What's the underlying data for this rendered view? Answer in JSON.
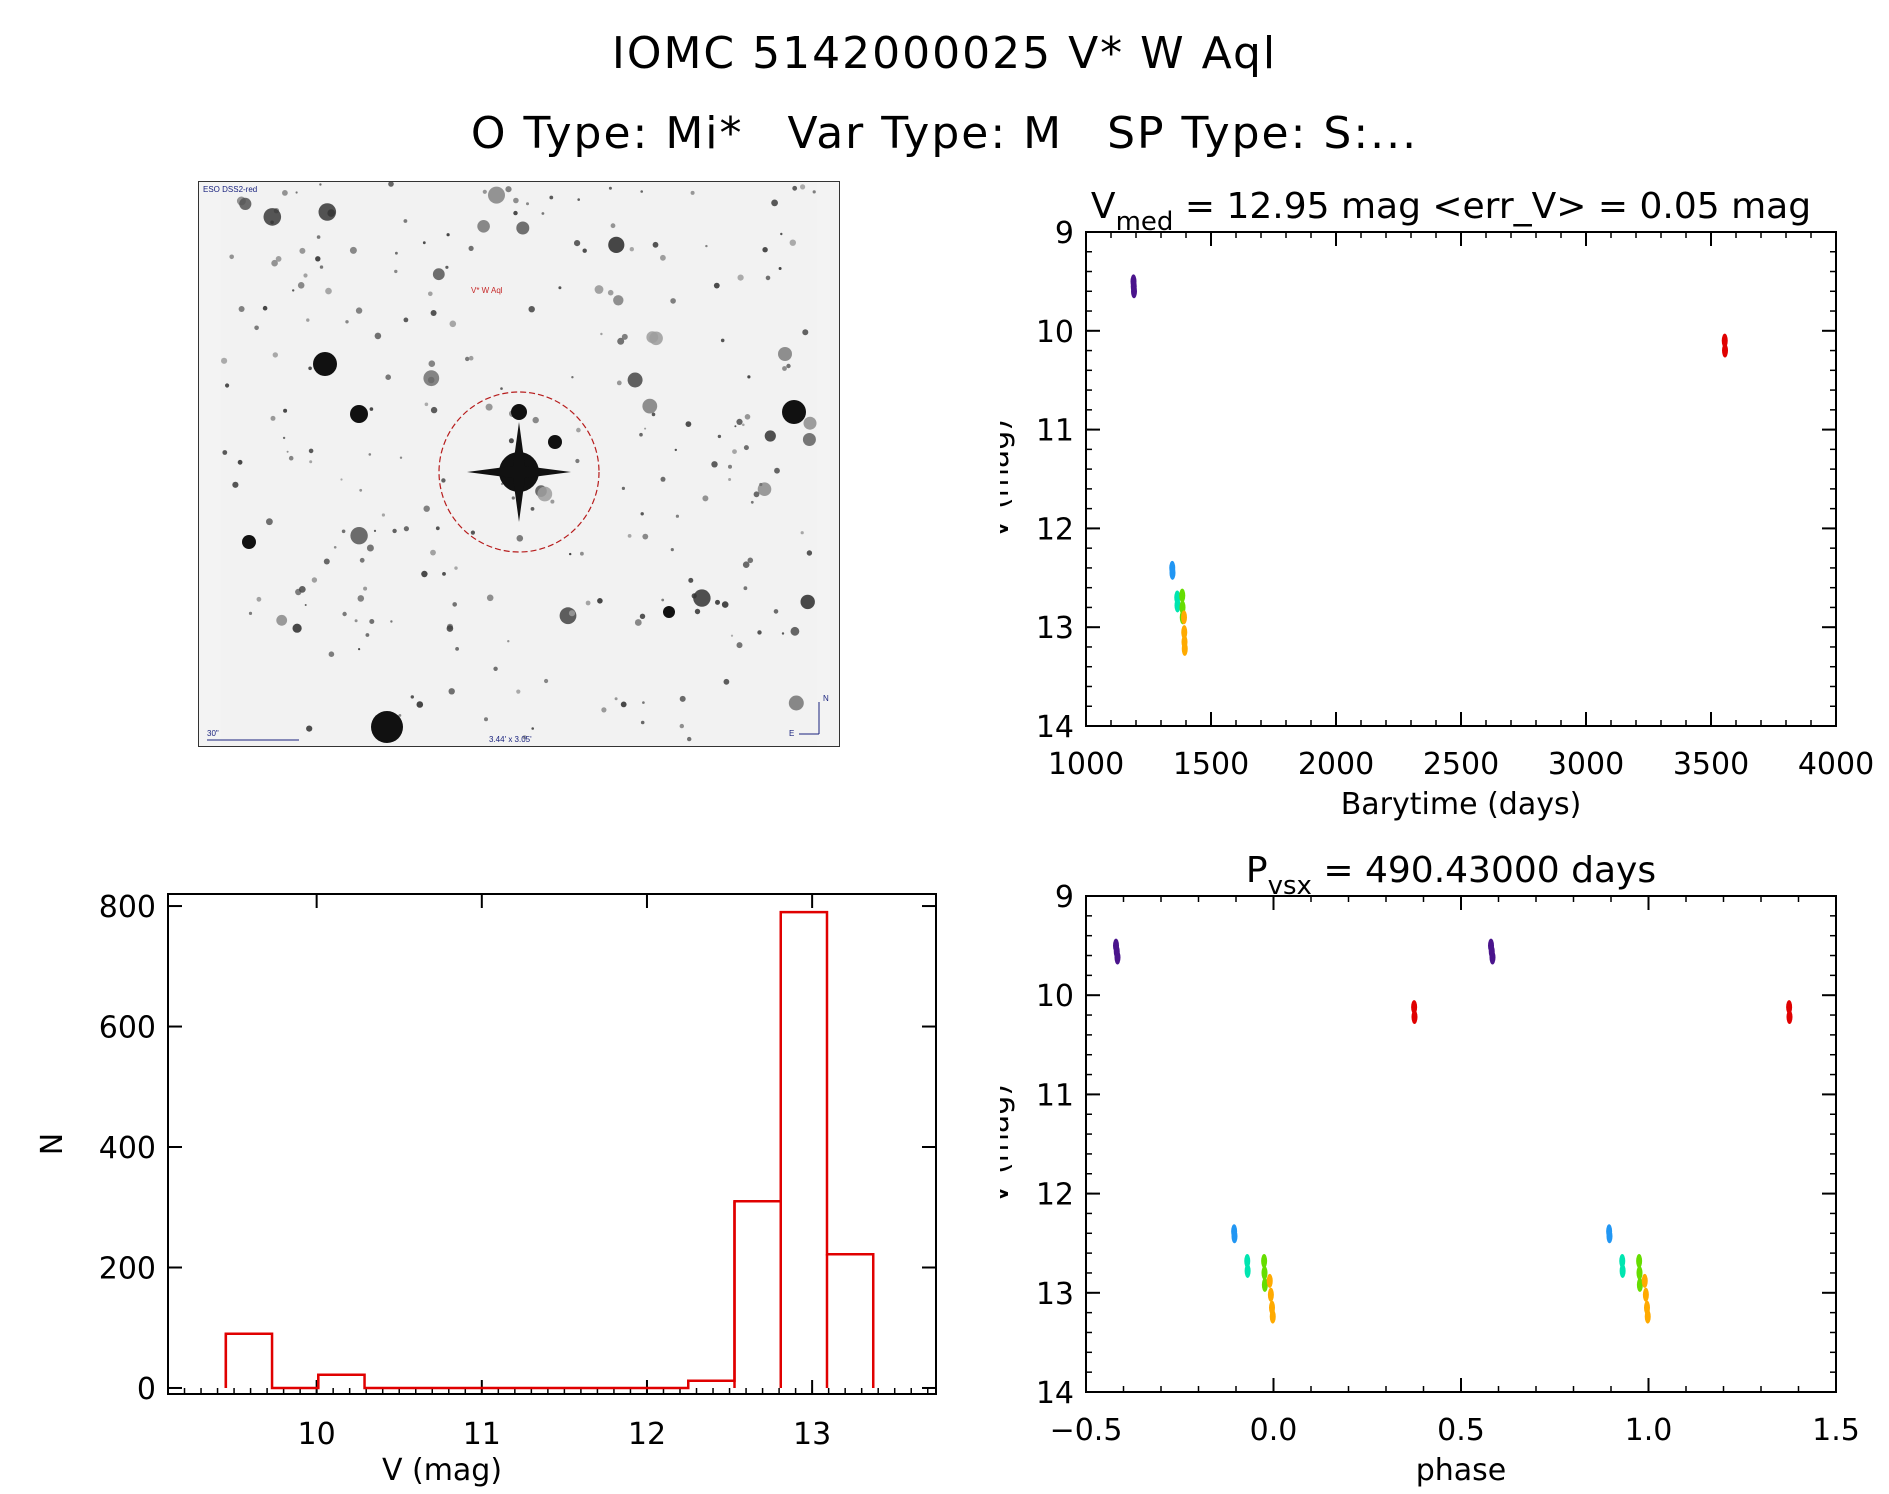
{
  "header": {
    "id_line": "IOMC 5142000025     V* W Aql",
    "otype": "O Type: Mi*",
    "vartype": "Var Type: M",
    "sptype": "SP Type: S:..."
  },
  "finder": {
    "survey_label": "ESO DSS2-red",
    "target_label": "V* W Aql",
    "scale_label": "30\"",
    "fov_label": "3.44' x 3.05'",
    "north_label": "N",
    "east_label": "E"
  },
  "colors": {
    "hist": "#e00000",
    "points": [
      "#4a148c",
      "#2196f3",
      "#00e5b0",
      "#66dd00",
      "#ffaa00",
      "#e00000"
    ]
  },
  "chart_data": [
    {
      "id": "lightcurve",
      "type": "scatter",
      "title_main": "V",
      "title_sub": "med",
      "title_rest": " = 12.95 mag <err_V> = 0.05 mag",
      "xlabel": "Barytime (days)",
      "ylabel": "V (mag)",
      "xlim": [
        1000,
        4000
      ],
      "ylim": [
        14,
        9
      ],
      "xticks": [
        1000,
        1500,
        2000,
        2500,
        3000,
        3500,
        4000
      ],
      "yticks": [
        9,
        10,
        11,
        12,
        13,
        14
      ],
      "points": [
        {
          "x": 1190,
          "y": 9.5,
          "c": 0
        },
        {
          "x": 1191,
          "y": 9.55,
          "c": 0
        },
        {
          "x": 1192,
          "y": 9.6,
          "c": 0
        },
        {
          "x": 1345,
          "y": 12.4,
          "c": 1
        },
        {
          "x": 1346,
          "y": 12.45,
          "c": 1
        },
        {
          "x": 1365,
          "y": 12.7,
          "c": 2
        },
        {
          "x": 1366,
          "y": 12.78,
          "c": 2
        },
        {
          "x": 1385,
          "y": 12.68,
          "c": 3
        },
        {
          "x": 1386,
          "y": 12.8,
          "c": 3
        },
        {
          "x": 1387,
          "y": 12.9,
          "c": 3
        },
        {
          "x": 1392,
          "y": 12.9,
          "c": 4
        },
        {
          "x": 1393,
          "y": 13.05,
          "c": 4
        },
        {
          "x": 1394,
          "y": 13.15,
          "c": 4
        },
        {
          "x": 1395,
          "y": 13.22,
          "c": 4
        },
        {
          "x": 3555,
          "y": 10.1,
          "c": 5
        },
        {
          "x": 3556,
          "y": 10.2,
          "c": 5
        }
      ]
    },
    {
      "id": "histogram",
      "type": "bar",
      "xlabel": "V (mag)",
      "ylabel": "N",
      "xlim": [
        9.1,
        13.75
      ],
      "ylim": [
        -10,
        820
      ],
      "xticks": [
        10,
        11,
        12,
        13
      ],
      "yticks": [
        0,
        200,
        400,
        600,
        800
      ],
      "bin_edges": [
        9.45,
        9.73,
        10.01,
        10.29,
        10.57,
        10.85,
        11.13,
        11.41,
        11.69,
        11.97,
        12.25,
        12.53,
        12.81,
        13.09,
        13.37
      ],
      "counts": [
        90,
        0,
        22,
        0,
        0,
        0,
        0,
        0,
        0,
        0,
        12,
        310,
        790,
        222
      ]
    },
    {
      "id": "phased",
      "type": "scatter",
      "title_main": "P",
      "title_sub": "vsx",
      "title_rest": " = 490.43000 days",
      "xlabel": "phase",
      "ylabel": "V (mag)",
      "xlim": [
        -0.5,
        1.5
      ],
      "ylim": [
        14,
        9
      ],
      "xticks": [
        -0.5,
        0.0,
        0.5,
        1.0,
        1.5
      ],
      "xtick_labels": [
        "−0.5",
        "0.0",
        "0.5",
        "1.0",
        "1.5"
      ],
      "yticks": [
        9,
        10,
        11,
        12,
        13,
        14
      ],
      "points": [
        {
          "x": -0.42,
          "y": 9.5,
          "c": 0
        },
        {
          "x": -0.418,
          "y": 9.56,
          "c": 0
        },
        {
          "x": -0.416,
          "y": 9.62,
          "c": 0
        },
        {
          "x": -0.105,
          "y": 12.38,
          "c": 1
        },
        {
          "x": -0.104,
          "y": 12.43,
          "c": 1
        },
        {
          "x": -0.07,
          "y": 12.68,
          "c": 2
        },
        {
          "x": -0.069,
          "y": 12.78,
          "c": 2
        },
        {
          "x": -0.025,
          "y": 12.68,
          "c": 3
        },
        {
          "x": -0.024,
          "y": 12.8,
          "c": 3
        },
        {
          "x": -0.023,
          "y": 12.92,
          "c": 3
        },
        {
          "x": -0.01,
          "y": 12.88,
          "c": 4
        },
        {
          "x": -0.007,
          "y": 13.02,
          "c": 4
        },
        {
          "x": -0.004,
          "y": 13.15,
          "c": 4
        },
        {
          "x": -0.002,
          "y": 13.24,
          "c": 4
        },
        {
          "x": 0.375,
          "y": 10.12,
          "c": 5
        },
        {
          "x": 0.376,
          "y": 10.22,
          "c": 5
        },
        {
          "x": 0.58,
          "y": 9.5,
          "c": 0
        },
        {
          "x": 0.582,
          "y": 9.56,
          "c": 0
        },
        {
          "x": 0.584,
          "y": 9.62,
          "c": 0
        },
        {
          "x": 0.895,
          "y": 12.38,
          "c": 1
        },
        {
          "x": 0.896,
          "y": 12.43,
          "c": 1
        },
        {
          "x": 0.93,
          "y": 12.68,
          "c": 2
        },
        {
          "x": 0.931,
          "y": 12.78,
          "c": 2
        },
        {
          "x": 0.975,
          "y": 12.68,
          "c": 3
        },
        {
          "x": 0.976,
          "y": 12.8,
          "c": 3
        },
        {
          "x": 0.977,
          "y": 12.92,
          "c": 3
        },
        {
          "x": 0.99,
          "y": 12.88,
          "c": 4
        },
        {
          "x": 0.993,
          "y": 13.02,
          "c": 4
        },
        {
          "x": 0.996,
          "y": 13.15,
          "c": 4
        },
        {
          "x": 0.998,
          "y": 13.24,
          "c": 4
        },
        {
          "x": 1.375,
          "y": 10.12,
          "c": 5
        },
        {
          "x": 1.376,
          "y": 10.22,
          "c": 5
        }
      ]
    }
  ]
}
